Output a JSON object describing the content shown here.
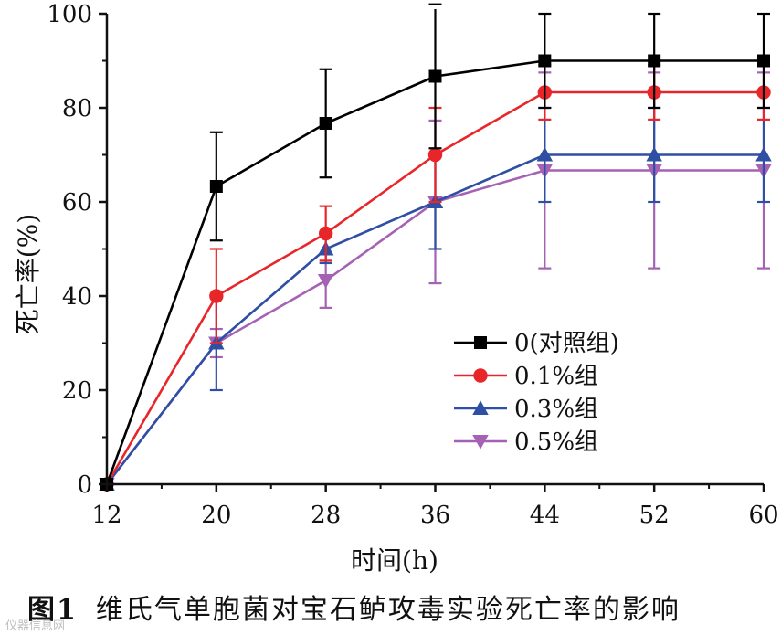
{
  "chart_data": {
    "type": "line",
    "title": "",
    "xlabel": "时间(h)",
    "ylabel": "死亡率(%)",
    "x": [
      12,
      20,
      28,
      36,
      44,
      52,
      60
    ],
    "xticks": [
      "12",
      "20",
      "28",
      "36",
      "44",
      "52",
      "60"
    ],
    "yticks": [
      "0",
      "20",
      "40",
      "60",
      "80",
      "100"
    ],
    "xlim": [
      12,
      60
    ],
    "ylim": [
      0,
      100
    ],
    "legend_position": "center-right",
    "series": [
      {
        "name": "0(对照组)",
        "marker": "square",
        "color": "#000000",
        "values": [
          0,
          63.3,
          76.7,
          86.7,
          90,
          90,
          90
        ],
        "errors": [
          0,
          11.5,
          11.5,
          15.3,
          10,
          10,
          10
        ]
      },
      {
        "name": "0.1%组",
        "marker": "circle",
        "color": "#e8262a",
        "values": [
          0,
          40,
          53.3,
          70,
          83.3,
          83.3,
          83.3
        ],
        "errors": [
          0,
          10,
          5.8,
          10,
          5.8,
          5.8,
          5.8
        ]
      },
      {
        "name": "0.3%组",
        "marker": "triangle-up",
        "color": "#2e4fa3",
        "values": [
          0,
          30,
          50,
          60,
          70,
          70,
          70
        ],
        "errors": [
          0,
          10,
          3,
          10,
          10,
          10,
          10
        ]
      },
      {
        "name": "0.5%组",
        "marker": "triangle-down",
        "color": "#a561b3",
        "values": [
          0,
          30,
          43.3,
          60,
          66.7,
          66.7,
          66.7
        ],
        "errors": [
          0,
          3,
          5.8,
          17.3,
          20.8,
          20.8,
          20.8
        ]
      }
    ]
  },
  "caption": {
    "label": "图1",
    "text": "维氏气单胞菌对宝石鲈攻毒实验死亡率的影响"
  },
  "watermark": "仪器信息网"
}
